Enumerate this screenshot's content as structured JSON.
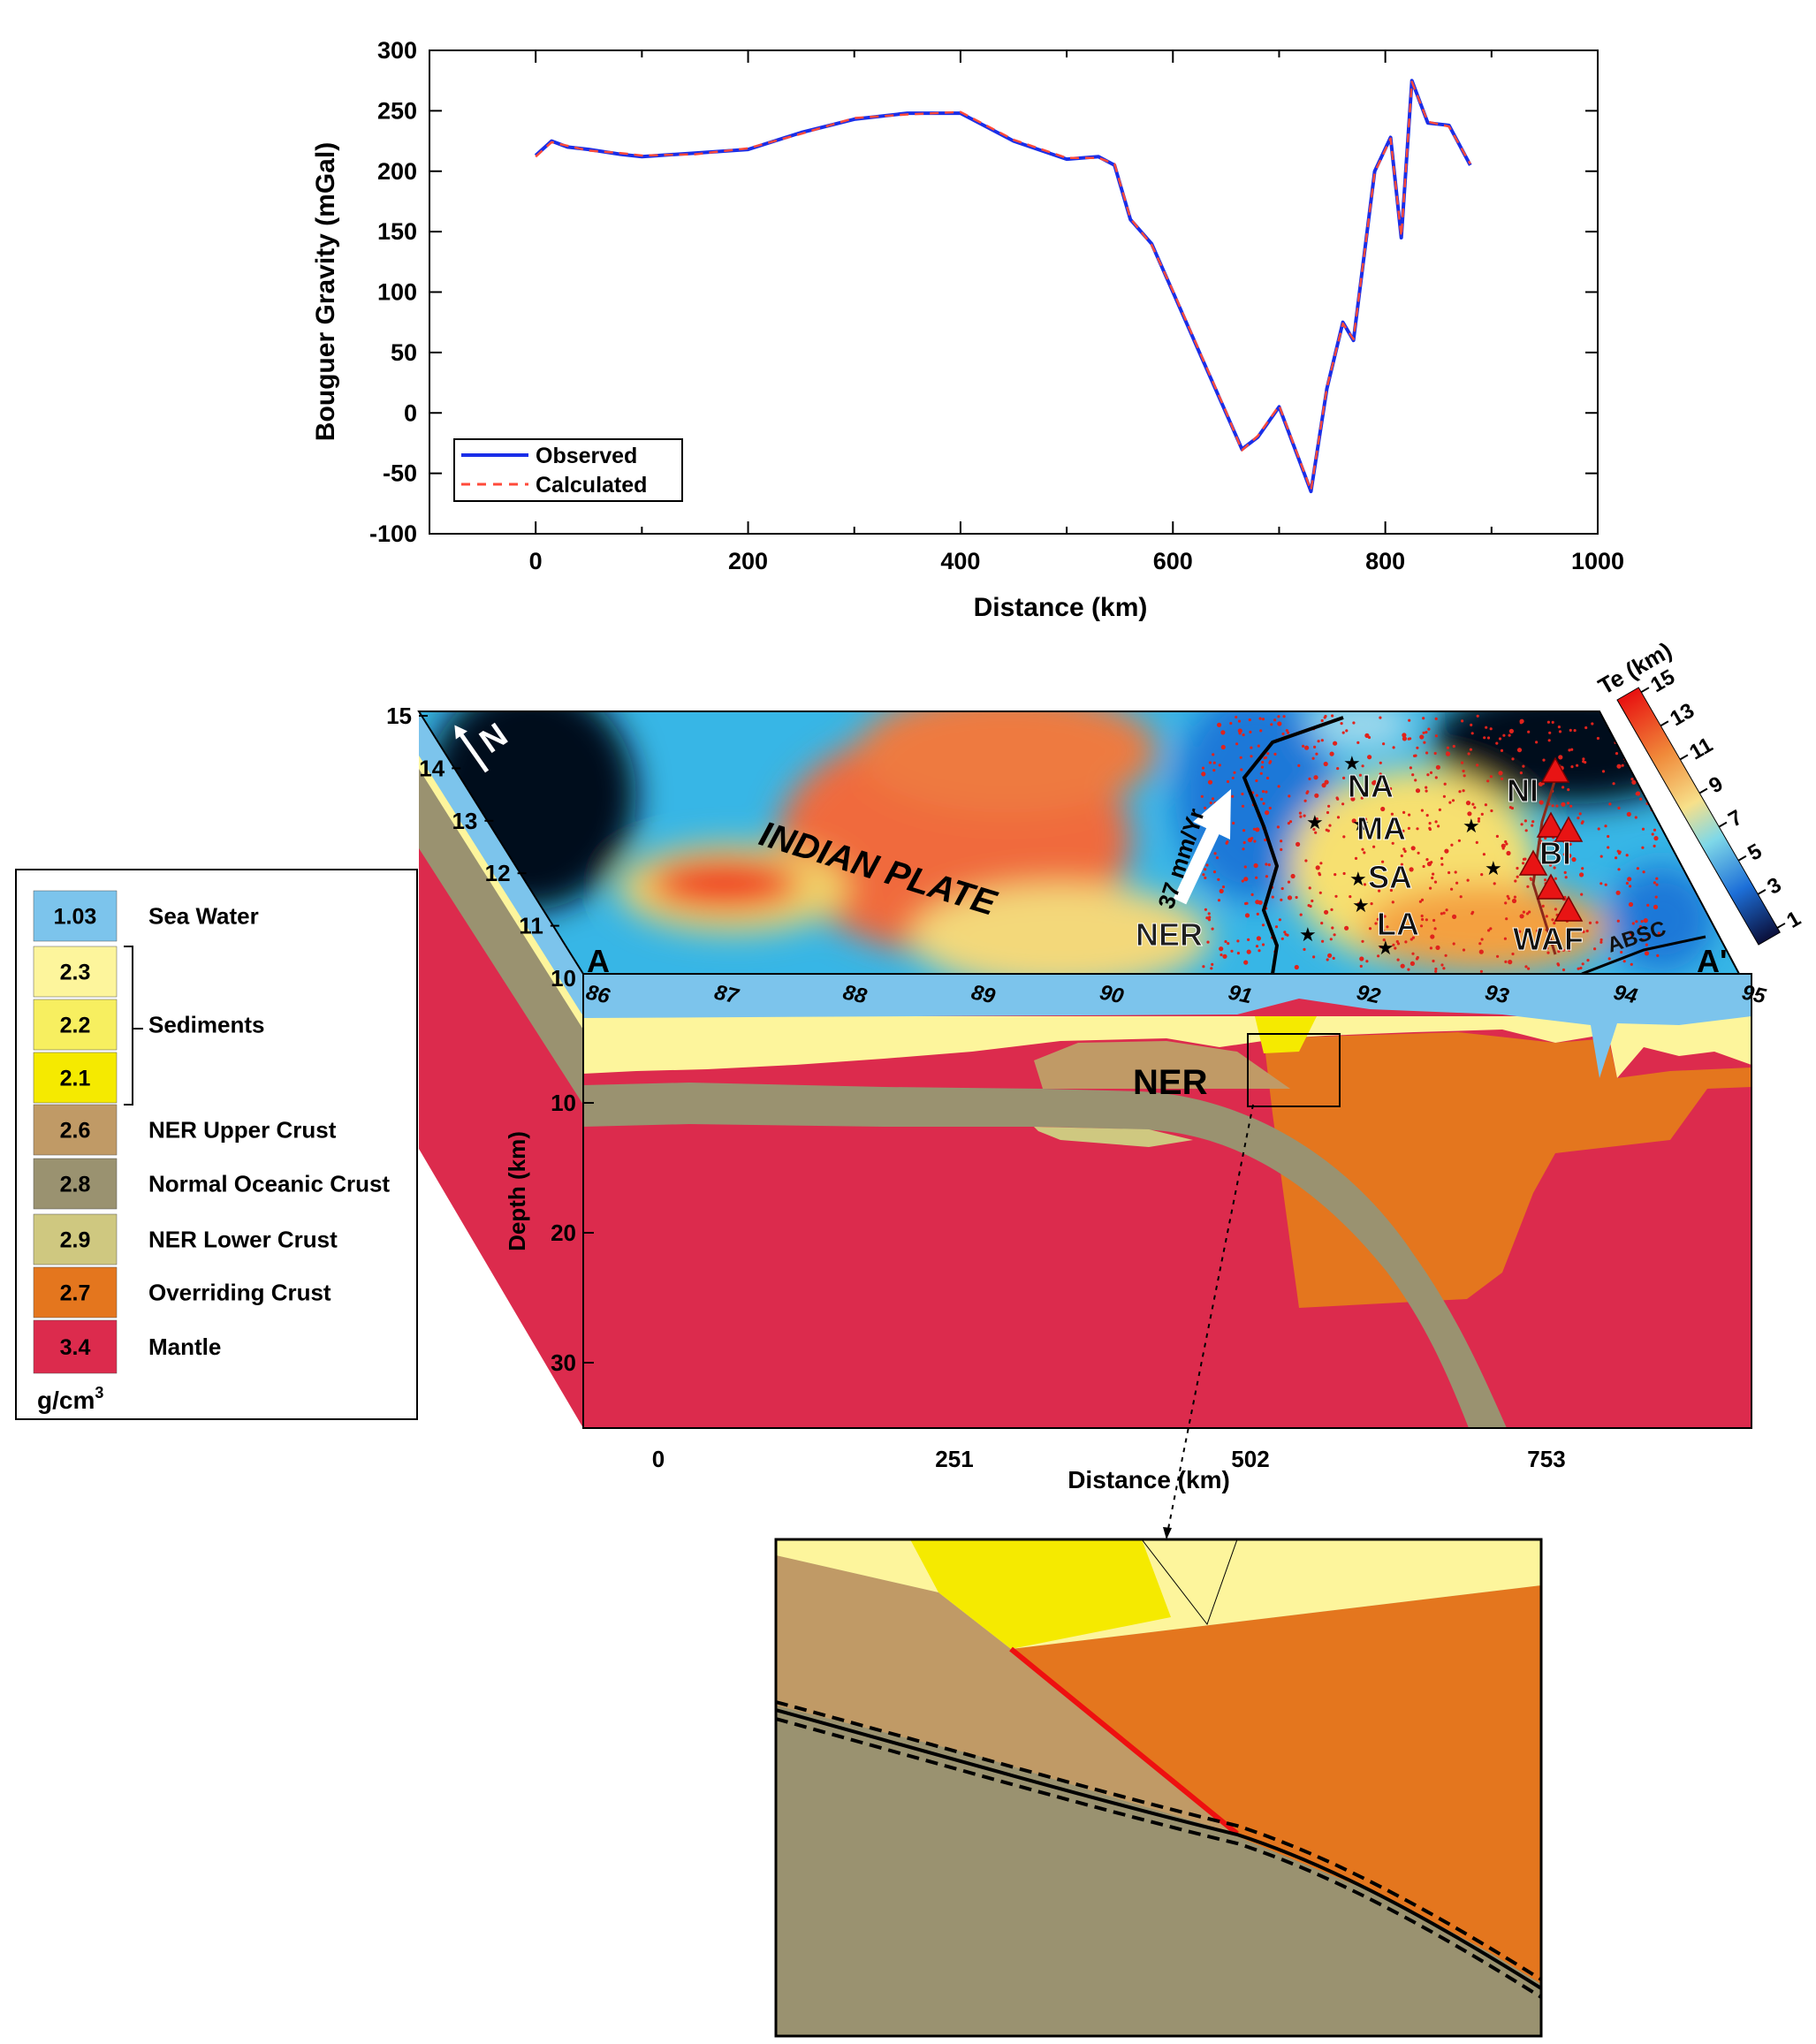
{
  "chart_data": {
    "type": "line",
    "xlabel": "Distance (km)",
    "ylabel": "Bouguer Gravity (mGal)",
    "xlim": [
      -100,
      1000
    ],
    "ylim": [
      -100,
      300
    ],
    "xticks": [
      0,
      200,
      400,
      600,
      800,
      1000
    ],
    "yticks": [
      300,
      250,
      200,
      150,
      100,
      50,
      0,
      -50,
      -100
    ],
    "legend_position": "bottom-left",
    "series": [
      {
        "name": "Observed",
        "color": "#1a2ee8",
        "style": "solid",
        "x": [
          0,
          15,
          30,
          50,
          80,
          100,
          150,
          200,
          250,
          300,
          350,
          400,
          450,
          500,
          530,
          545,
          560,
          580,
          600,
          625,
          650,
          665,
          680,
          700,
          715,
          730,
          745,
          760,
          770,
          790,
          805,
          815,
          825,
          840,
          860,
          880
        ],
        "y": [
          213,
          225,
          220,
          218,
          214,
          212,
          215,
          218,
          232,
          243,
          248,
          248,
          225,
          210,
          212,
          205,
          160,
          140,
          100,
          50,
          0,
          -30,
          -20,
          5,
          -30,
          -65,
          20,
          75,
          60,
          200,
          228,
          145,
          275,
          240,
          238,
          205
        ]
      },
      {
        "name": "Calculated",
        "color": "#ff4a3a",
        "style": "dashed",
        "x": [
          0,
          15,
          30,
          50,
          80,
          100,
          150,
          200,
          250,
          300,
          350,
          400,
          450,
          500,
          530,
          545,
          560,
          580,
          600,
          625,
          650,
          665,
          680,
          700,
          715,
          730,
          745,
          760,
          770,
          790,
          805,
          815,
          825,
          840,
          860,
          880
        ],
        "y": [
          212,
          224,
          221,
          217,
          215,
          213,
          214,
          219,
          231,
          244,
          247,
          249,
          226,
          211,
          211,
          206,
          161,
          139,
          101,
          51,
          1,
          -31,
          -19,
          6,
          -29,
          -64,
          21,
          74,
          61,
          199,
          227,
          146,
          274,
          241,
          237,
          206
        ]
      }
    ]
  },
  "block_diagram": {
    "map_labels": {
      "corner_left": "A",
      "corner_right": "A'",
      "plate": "INDIAN PLATE",
      "rate": "37 mm/Yr",
      "ner": "NER",
      "na": "NA",
      "ma": "MA",
      "sa": "SA",
      "la": "LA",
      "ni": "NI",
      "bi": "BI",
      "waf": "WAF",
      "absc": "ABSC",
      "north": "N"
    },
    "longitudes": [
      "86",
      "87",
      "88",
      "89",
      "90",
      "91",
      "92",
      "93",
      "94",
      "95"
    ],
    "latitudes": [
      "15",
      "14",
      "13",
      "12",
      "11",
      "10"
    ],
    "colorbar": {
      "title": "Te (km)",
      "ticks": [
        "15",
        "13",
        "11",
        "9",
        "7",
        "5",
        "3",
        "1"
      ]
    },
    "section": {
      "ner_label": "NER",
      "depth_label": "Depth (km)",
      "depth_ticks": [
        "10",
        "20",
        "30"
      ],
      "distance_label": "Distance (km)",
      "distance_ticks": [
        "0",
        "251",
        "502",
        "753"
      ]
    },
    "legend": {
      "unit": "g/cm",
      "unit_sup": "3",
      "rows": [
        {
          "value": "1.03",
          "label": "Sea Water",
          "color": "#7cc4ec"
        },
        {
          "value": "2.3",
          "label": "",
          "color": "#fdf59c"
        },
        {
          "value": "2.2",
          "label": "Sediments",
          "color": "#f7ef60"
        },
        {
          "value": "2.1",
          "label": "",
          "color": "#f5ea00"
        },
        {
          "value": "2.6",
          "label": "NER Upper Crust",
          "color": "#c09a66"
        },
        {
          "value": "2.8",
          "label": "Normal Oceanic Crust",
          "color": "#9a9270"
        },
        {
          "value": "2.9",
          "label": "NER Lower Crust",
          "color": "#cfc880"
        },
        {
          "value": "2.7",
          "label": "Overriding Crust",
          "color": "#e4761e"
        },
        {
          "value": "3.4",
          "label": "Mantle",
          "color": "#dc2b4d"
        }
      ]
    }
  }
}
